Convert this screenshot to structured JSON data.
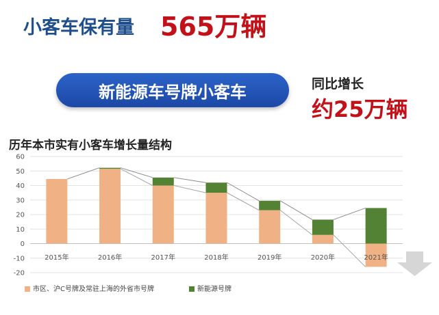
{
  "headline": {
    "label": "小客车保有量",
    "value": "565万辆"
  },
  "pill_label": "新能源车号牌小客车",
  "yoy": {
    "label": "同比增长",
    "value": "约25万辆"
  },
  "chart_data": {
    "type": "bar",
    "title": "历年本市实有小客车增长量结构",
    "categories": [
      "2015年",
      "2016年",
      "2017年",
      "2018年",
      "2019年",
      "2020年",
      "2021年"
    ],
    "series": [
      {
        "name": "市区、沪C号牌及常驻上海的外省市号牌",
        "color": "#f0b285",
        "values": [
          44.5,
          51.5,
          40,
          35,
          23,
          6,
          -16
        ]
      },
      {
        "name": "新能源号牌",
        "color": "#548235",
        "values": [
          0,
          0.7,
          5.5,
          7,
          6.5,
          10.5,
          24.5
        ]
      }
    ],
    "stacked": true,
    "ylim": [
      -20,
      60
    ],
    "yticks": [
      -20,
      -10,
      0,
      10,
      20,
      30,
      40,
      50,
      60
    ],
    "gridlines": true,
    "legend_position": "bottom-left",
    "arrow_icon": "down-arrow-icon"
  }
}
